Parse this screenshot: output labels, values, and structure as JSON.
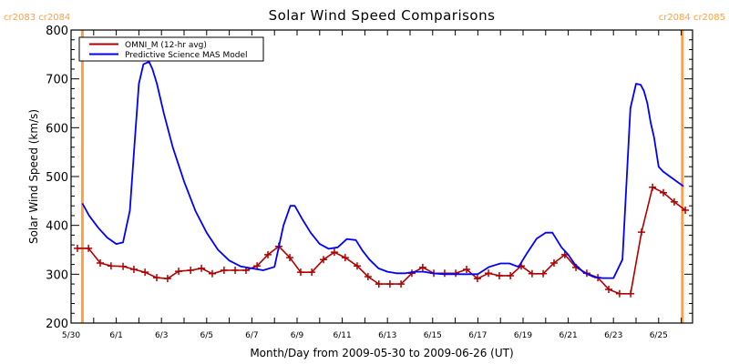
{
  "chart_data": {
    "type": "line",
    "title": "Solar Wind Speed Comparisons",
    "xlabel": "Month/Day from 2009-05-30 to 2009-06-26 (UT)",
    "ylabel": "Solar Wind Speed (km/s)",
    "xlim_days": [
      0,
      27.5
    ],
    "ylim": [
      200,
      800
    ],
    "yticks": [
      200,
      300,
      400,
      500,
      600,
      700,
      800
    ],
    "xticks": [
      {
        "day": 0,
        "label": "5/30"
      },
      {
        "day": 2,
        "label": "6/1"
      },
      {
        "day": 4,
        "label": "6/3"
      },
      {
        "day": 6,
        "label": "6/5"
      },
      {
        "day": 8,
        "label": "6/7"
      },
      {
        "day": 10,
        "label": "6/9"
      },
      {
        "day": 12,
        "label": "6/11"
      },
      {
        "day": 14,
        "label": "6/13"
      },
      {
        "day": 16,
        "label": "6/15"
      },
      {
        "day": 18,
        "label": "6/17"
      },
      {
        "day": 20,
        "label": "6/19"
      },
      {
        "day": 22,
        "label": "6/21"
      },
      {
        "day": 24,
        "label": "6/23"
      },
      {
        "day": 26,
        "label": "6/25"
      }
    ],
    "carrington_markers": [
      {
        "day": 0.5,
        "label": "cr2083 cr2084",
        "align": "left"
      },
      {
        "day": 27.05,
        "label": "cr2084 cr2085",
        "align": "right"
      }
    ],
    "marker_color": "#ffa040",
    "legend": {
      "placement": "top-left",
      "entries": [
        {
          "name": "OMNI_M (12-hr avg)",
          "color": "#b00000"
        },
        {
          "name": "Predictive Science MAS Model",
          "color": "#0000ff"
        }
      ]
    },
    "series": [
      {
        "name": "OMNI_M (12-hr avg)",
        "color": "#b00000",
        "markers": true,
        "x_days": [
          0.28,
          0.77,
          1.29,
          1.77,
          2.3,
          2.78,
          3.27,
          3.79,
          4.27,
          4.76,
          5.29,
          5.77,
          6.25,
          6.77,
          7.26,
          7.74,
          8.23,
          8.71,
          9.19,
          9.68,
          10.16,
          10.65,
          11.17,
          11.65,
          12.13,
          12.66,
          13.14,
          13.62,
          14.11,
          14.6,
          15.08,
          15.56,
          16.05,
          16.53,
          17.02,
          17.5,
          17.98,
          18.47,
          18.95,
          19.44,
          19.92,
          20.4,
          20.89,
          21.37,
          21.85,
          22.34,
          22.82,
          23.31,
          23.79,
          24.27,
          24.76,
          25.24,
          25.73,
          26.21,
          26.69,
          27.18
        ],
        "values": [
          353,
          353,
          323,
          317,
          316,
          310,
          304,
          293,
          291,
          306,
          308,
          312,
          301,
          308,
          308,
          308,
          317,
          340,
          357,
          334,
          304,
          304,
          330,
          345,
          334,
          317,
          295,
          280,
          280,
          280,
          302,
          314,
          302,
          302,
          302,
          310,
          291,
          302,
          297,
          297,
          317,
          301,
          301,
          323,
          340,
          314,
          302,
          293,
          269,
          260,
          260,
          386,
          478,
          467,
          448,
          431
        ]
      },
      {
        "name": "Predictive Science MAS Model",
        "color": "#0000ff",
        "markers": false,
        "x_days": [
          0.5,
          0.8,
          1.2,
          1.6,
          2.0,
          2.3,
          2.6,
          2.8,
          3.0,
          3.2,
          3.45,
          3.6,
          3.8,
          4.1,
          4.5,
          5.0,
          5.5,
          6.0,
          6.5,
          7.0,
          7.5,
          8.0,
          8.5,
          9.0,
          9.4,
          9.7,
          9.9,
          10.2,
          10.6,
          11.0,
          11.4,
          11.8,
          12.2,
          12.6,
          12.9,
          13.2,
          13.6,
          14.0,
          14.4,
          14.8,
          15.2,
          15.6,
          16.0,
          16.5,
          17.0,
          17.5,
          18.0,
          18.5,
          19.0,
          19.4,
          19.8,
          20.2,
          20.6,
          21.0,
          21.3,
          21.7,
          22.0,
          22.3,
          22.7,
          23.1,
          23.5,
          24.0,
          24.4,
          24.75,
          25.0,
          25.2,
          25.35,
          25.5,
          25.65,
          25.8,
          26.0,
          26.2,
          26.5,
          26.8,
          27.1
        ],
        "values": [
          445,
          420,
          395,
          375,
          362,
          365,
          430,
          560,
          690,
          730,
          735,
          720,
          690,
          630,
          560,
          490,
          430,
          385,
          350,
          328,
          316,
          312,
          308,
          315,
          400,
          440,
          440,
          415,
          385,
          362,
          352,
          355,
          372,
          370,
          348,
          330,
          312,
          305,
          302,
          302,
          305,
          305,
          302,
          300,
          300,
          300,
          300,
          315,
          322,
          322,
          315,
          345,
          373,
          385,
          385,
          355,
          340,
          320,
          303,
          295,
          292,
          292,
          330,
          640,
          690,
          688,
          675,
          650,
          610,
          580,
          520,
          510,
          500,
          490,
          480
        ]
      }
    ]
  }
}
